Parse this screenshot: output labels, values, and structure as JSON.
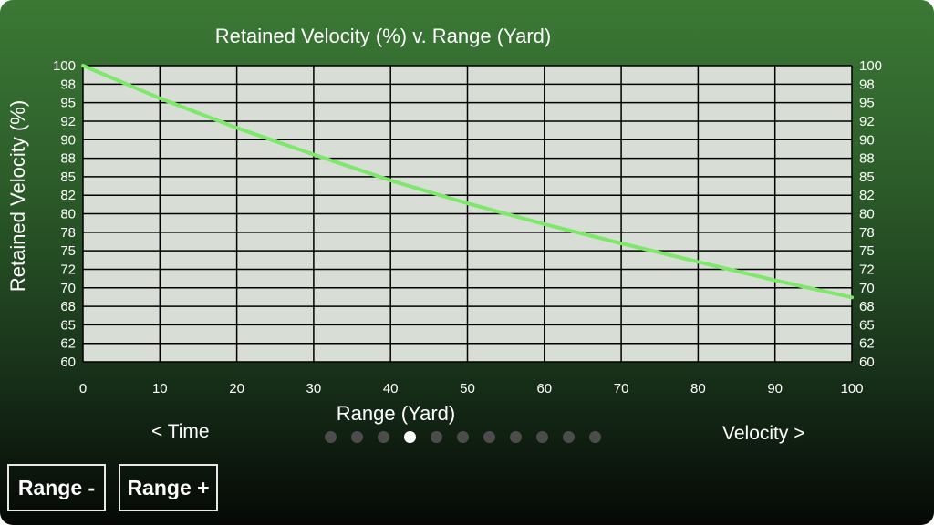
{
  "chart_data": {
    "type": "line",
    "title": "Retained Velocity (%) v. Range (Yard)",
    "xlabel": "Range (Yard)",
    "ylabel": "Retained Velocity (%)",
    "xlim": [
      0,
      100
    ],
    "ylim": [
      60,
      100
    ],
    "x_ticks": [
      "0",
      "10",
      "20",
      "30",
      "40",
      "50",
      "60",
      "70",
      "80",
      "90",
      "100"
    ],
    "y_ticks": [
      "100",
      "98",
      "95",
      "92",
      "90",
      "88",
      "85",
      "82",
      "80",
      "78",
      "75",
      "72",
      "70",
      "68",
      "65",
      "62",
      "60"
    ],
    "grid": true,
    "series": [
      {
        "color": "#7ee86a",
        "x": [
          0,
          10,
          20,
          30,
          40,
          50,
          60,
          70,
          80,
          90,
          100
        ],
        "y": [
          100,
          95.6,
          91.6,
          88,
          84.5,
          81.4,
          78.6,
          76,
          73.5,
          71,
          68.7
        ]
      }
    ],
    "plot_background": "#d8ddd6",
    "grid_color": "#000000"
  },
  "navigation": {
    "prev_label": "< Time",
    "next_label": "Velocity >",
    "page_count": 11,
    "active_page": 3
  },
  "buttons": {
    "range_minus": "Range -",
    "range_plus": "Range +"
  }
}
